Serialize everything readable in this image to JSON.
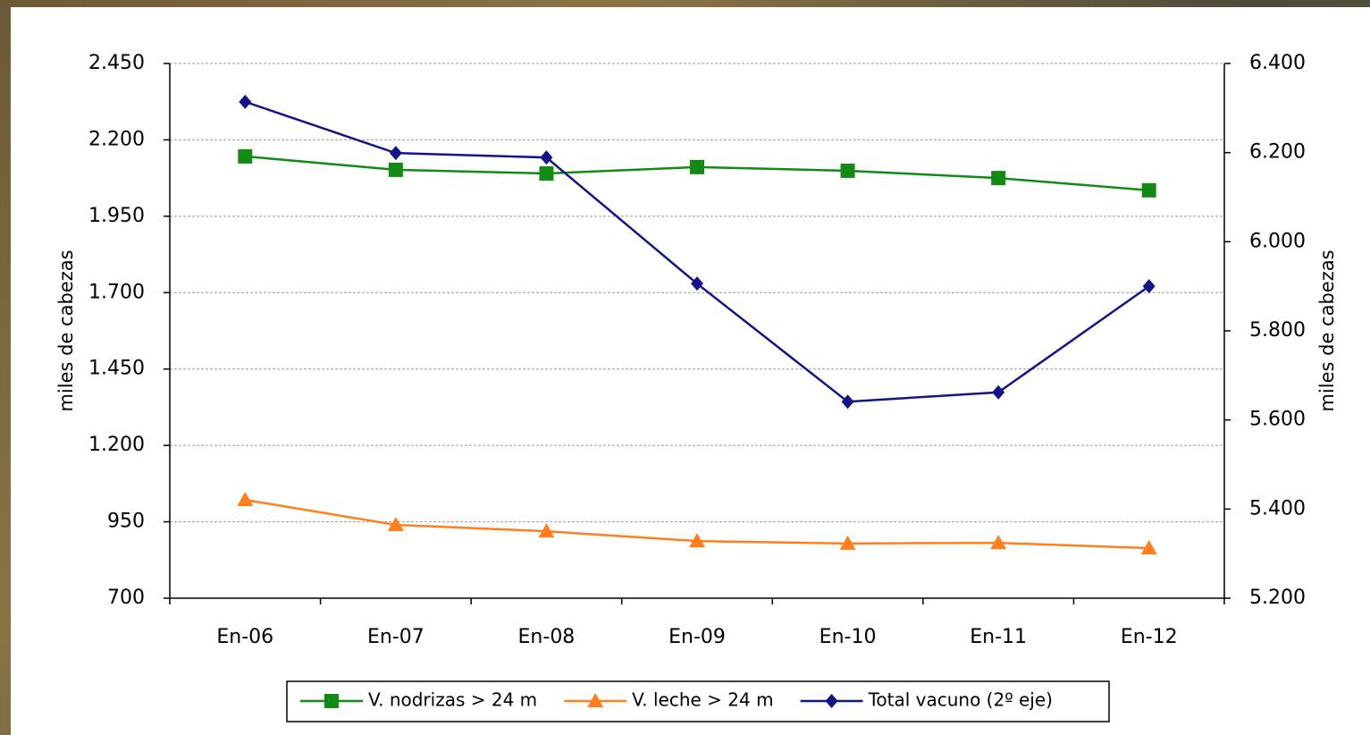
{
  "chart_data": {
    "type": "line",
    "categories": [
      "En-06",
      "En-07",
      "En-08",
      "En-09",
      "En-10",
      "En-11",
      "En-12"
    ],
    "y_label": "miles de cabezas",
    "y2_label": "miles de cabezas",
    "ylim": [
      700,
      2450
    ],
    "yticks": [
      700,
      950,
      {
        "value": 1200,
        "label": "1.200"
      },
      {
        "value": 1450,
        "label": "1.450"
      },
      {
        "value": 1700,
        "label": "1.700"
      },
      {
        "value": 1950,
        "label": "1.950"
      },
      {
        "value": 2200,
        "label": "2.200"
      },
      {
        "value": 2450,
        "label": "2.450"
      }
    ],
    "y2lim": [
      5200,
      6400
    ],
    "y2ticks": [
      {
        "value": 5200,
        "label": "5.200"
      },
      {
        "value": 5400,
        "label": "5.400"
      },
      {
        "value": 5600,
        "label": "5.600"
      },
      {
        "value": 5800,
        "label": "5.800"
      },
      {
        "value": 6000,
        "label": "6.000"
      },
      {
        "value": 6200,
        "label": "6.200"
      },
      {
        "value": 6400,
        "label": "6.400"
      }
    ],
    "grid": true,
    "series": [
      {
        "name": "V. nodrizas > 24 m",
        "color": "#138a13",
        "marker": "square",
        "values": [
          2146,
          2102,
          2090,
          2111,
          2099,
          2075,
          2035
        ]
      },
      {
        "name": "V. leche > 24 m",
        "color": "#ff7f1e",
        "marker": "triangle",
        "values": [
          1022,
          940,
          919,
          887,
          879,
          881,
          864
        ]
      },
      {
        "name": "Total vacuno (2º eje)",
        "color": "#14148a",
        "marker": "diamond",
        "axis": "y2",
        "values": [
          6314,
          6199,
          6189,
          5906,
          5641,
          5662,
          5900
        ]
      }
    ]
  }
}
